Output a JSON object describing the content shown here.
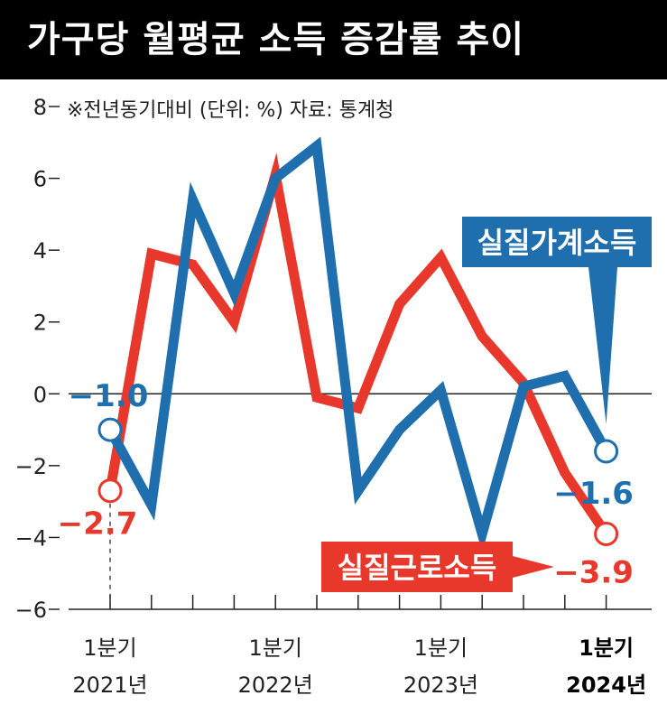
{
  "title": "가구당 월평균 소득 증감률 추이",
  "note": "※전년동기대비 (단위: %) 자료: 통계청",
  "chart_data": {
    "type": "line",
    "x": [
      "2021-Q1",
      "2021-Q2",
      "2021-Q3",
      "2021-Q4",
      "2022-Q1",
      "2022-Q2",
      "2022-Q3",
      "2022-Q4",
      "2023-Q1",
      "2023-Q2",
      "2023-Q3",
      "2023-Q4",
      "2024-Q1"
    ],
    "y_ticks": [
      "8",
      "6",
      "4",
      "2",
      "0",
      "−2",
      "−4",
      "−6"
    ],
    "ylim": [
      -6,
      8
    ],
    "x_tick_labels": [
      {
        "quarter": "1분기",
        "year": "2021년"
      },
      {
        "quarter": "1분기",
        "year": "2022년"
      },
      {
        "quarter": "1분기",
        "year": "2023년"
      },
      {
        "quarter": "1분기",
        "year": "2024년"
      }
    ],
    "series": [
      {
        "name": "실질가계소득",
        "color": "#1f6fae",
        "values": [
          -1.0,
          -3.1,
          5.4,
          2.8,
          6.0,
          6.9,
          -2.7,
          -1.0,
          0.1,
          -3.9,
          0.2,
          0.5,
          -1.6
        ],
        "first_label": "−1.0",
        "last_label": "−1.6"
      },
      {
        "name": "실질근로소득",
        "color": "#e8382b",
        "values": [
          -2.7,
          3.9,
          3.6,
          2.0,
          6.1,
          -0.1,
          -0.4,
          2.5,
          3.8,
          1.6,
          0.3,
          -2.2,
          -3.9
        ],
        "first_label": "−2.7",
        "last_label": "−3.9"
      }
    ]
  }
}
